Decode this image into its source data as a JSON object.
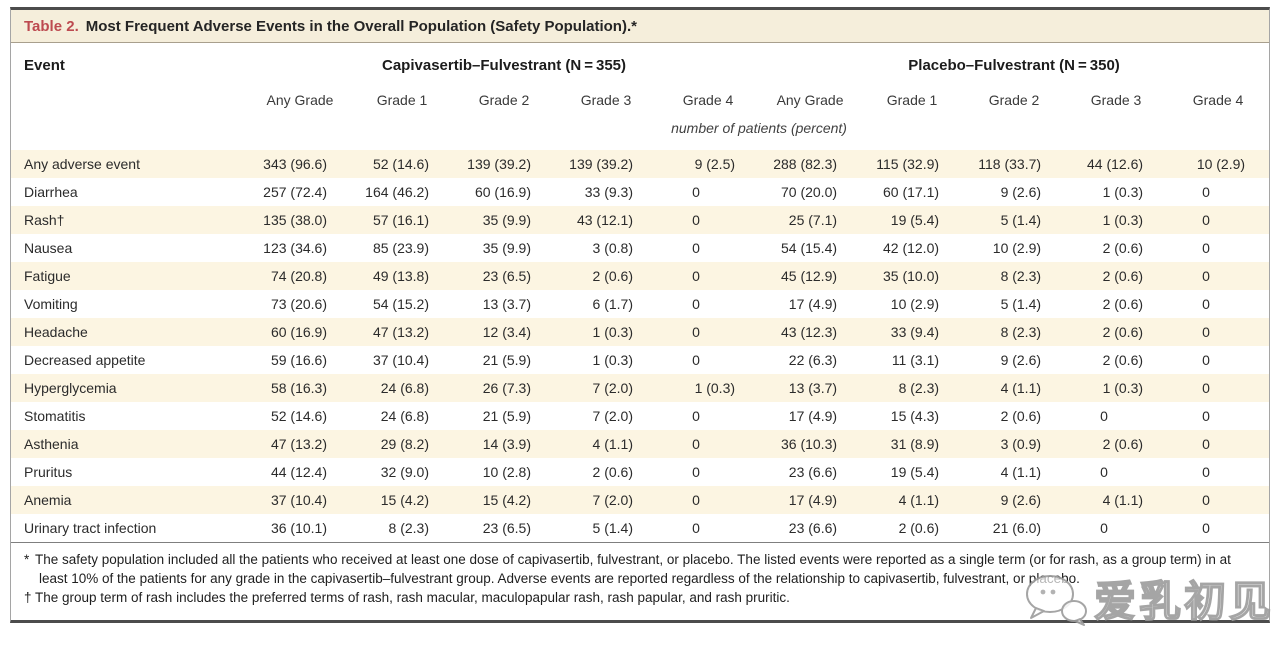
{
  "table": {
    "title_label": "Table 2.",
    "title_text": "Most Frequent Adverse Events in the Overall Population (Safety Population).*",
    "event_header": "Event",
    "groups": [
      {
        "label": "Capivasertib–Fulvestrant (N = 355)"
      },
      {
        "label": "Placebo–Fulvestrant (N = 350)"
      }
    ],
    "grade_headers": [
      "Any Grade",
      "Grade 1",
      "Grade 2",
      "Grade 3",
      "Grade 4",
      "Any Grade",
      "Grade 1",
      "Grade 2",
      "Grade 3",
      "Grade 4"
    ],
    "units_note": "number of patients (percent)",
    "rows": [
      {
        "event": "Any adverse event",
        "values": [
          "343 (96.6)",
          "52 (14.6)",
          "139 (39.2)",
          "139 (39.2)",
          "9 (2.5)",
          "288 (82.3)",
          "115 (32.9)",
          "118 (33.7)",
          "44 (12.6)",
          "10 (2.9)"
        ]
      },
      {
        "event": "Diarrhea",
        "values": [
          "257 (72.4)",
          "164 (46.2)",
          "60 (16.9)",
          "33 (9.3)",
          "0",
          "70 (20.0)",
          "60 (17.1)",
          "9 (2.6)",
          "1 (0.3)",
          "0"
        ]
      },
      {
        "event": "Rash†",
        "values": [
          "135 (38.0)",
          "57 (16.1)",
          "35 (9.9)",
          "43 (12.1)",
          "0",
          "25 (7.1)",
          "19 (5.4)",
          "5 (1.4)",
          "1 (0.3)",
          "0"
        ]
      },
      {
        "event": "Nausea",
        "values": [
          "123 (34.6)",
          "85 (23.9)",
          "35 (9.9)",
          "3 (0.8)",
          "0",
          "54 (15.4)",
          "42 (12.0)",
          "10 (2.9)",
          "2 (0.6)",
          "0"
        ]
      },
      {
        "event": "Fatigue",
        "values": [
          "74 (20.8)",
          "49 (13.8)",
          "23 (6.5)",
          "2 (0.6)",
          "0",
          "45 (12.9)",
          "35 (10.0)",
          "8 (2.3)",
          "2 (0.6)",
          "0"
        ]
      },
      {
        "event": "Vomiting",
        "values": [
          "73 (20.6)",
          "54 (15.2)",
          "13 (3.7)",
          "6 (1.7)",
          "0",
          "17 (4.9)",
          "10 (2.9)",
          "5 (1.4)",
          "2 (0.6)",
          "0"
        ]
      },
      {
        "event": "Headache",
        "values": [
          "60 (16.9)",
          "47 (13.2)",
          "12 (3.4)",
          "1 (0.3)",
          "0",
          "43 (12.3)",
          "33 (9.4)",
          "8 (2.3)",
          "2 (0.6)",
          "0"
        ]
      },
      {
        "event": "Decreased appetite",
        "values": [
          "59 (16.6)",
          "37 (10.4)",
          "21 (5.9)",
          "1 (0.3)",
          "0",
          "22 (6.3)",
          "11 (3.1)",
          "9 (2.6)",
          "2 (0.6)",
          "0"
        ]
      },
      {
        "event": "Hyperglycemia",
        "values": [
          "58 (16.3)",
          "24 (6.8)",
          "26 (7.3)",
          "7 (2.0)",
          "1 (0.3)",
          "13 (3.7)",
          "8 (2.3)",
          "4 (1.1)",
          "1 (0.3)",
          "0"
        ]
      },
      {
        "event": "Stomatitis",
        "values": [
          "52 (14.6)",
          "24 (6.8)",
          "21 (5.9)",
          "7 (2.0)",
          "0",
          "17 (4.9)",
          "15 (4.3)",
          "2 (0.6)",
          "0",
          "0"
        ]
      },
      {
        "event": "Asthenia",
        "values": [
          "47 (13.2)",
          "29 (8.2)",
          "14 (3.9)",
          "4 (1.1)",
          "0",
          "36 (10.3)",
          "31 (8.9)",
          "3 (0.9)",
          "2 (0.6)",
          "0"
        ]
      },
      {
        "event": "Pruritus",
        "values": [
          "44 (12.4)",
          "32 (9.0)",
          "10 (2.8)",
          "2 (0.6)",
          "0",
          "23 (6.6)",
          "19 (5.4)",
          "4 (1.1)",
          "0",
          "0"
        ]
      },
      {
        "event": "Anemia",
        "values": [
          "37 (10.4)",
          "15 (4.2)",
          "15 (4.2)",
          "7 (2.0)",
          "0",
          "17 (4.9)",
          "4 (1.1)",
          "9 (2.6)",
          "4 (1.1)",
          "0"
        ]
      },
      {
        "event": "Urinary tract infection",
        "values": [
          "36 (10.1)",
          "8 (2.3)",
          "23 (6.5)",
          "5 (1.4)",
          "0",
          "23 (6.6)",
          "2 (0.6)",
          "21 (6.0)",
          "0",
          "0"
        ]
      }
    ],
    "footnotes": [
      {
        "marker": "*",
        "text": "The safety population included all the patients who received at least one dose of capivasertib, fulvestrant, or placebo. The listed events were reported as a single term (or for rash, as a group term) in at least 10% of the patients for any grade in the capivasertib–fulvestrant group. Adverse events are reported regardless of the relationship to capivasertib, fulvestrant, or placebo."
      },
      {
        "marker": "†",
        "text": "The group term of rash includes the preferred terms of rash, rash macular, maculopapular rash, rash papular, and rash pruritic."
      }
    ]
  },
  "watermark": {
    "text": "爱乳初见",
    "icon": "chat-bubbles-icon"
  },
  "colors": {
    "title_band_bg": "#f5eedb",
    "stripe_bg": "#fcf5e2",
    "title_red": "#bd4a50",
    "frame_border": "#4c4c4c"
  }
}
